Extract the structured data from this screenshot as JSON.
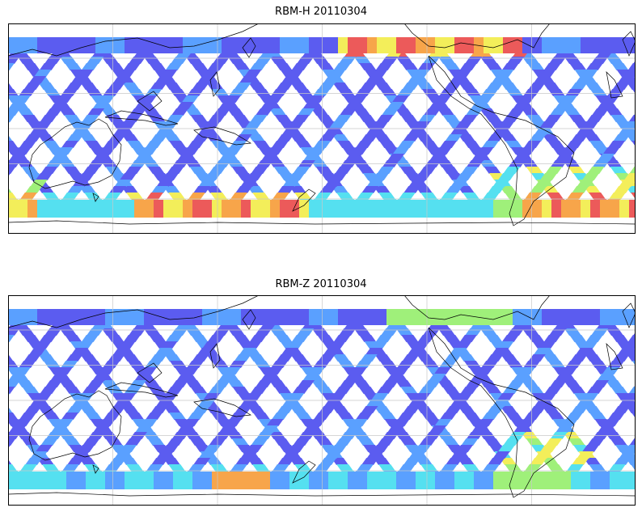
{
  "panels": [
    {
      "title": "RBM-H 20110304",
      "variable": "RBM-H",
      "date": "20110304"
    },
    {
      "title": "RBM-Z 20110304",
      "variable": "RBM-Z",
      "date": "20110304"
    }
  ],
  "colormap": "jet",
  "colors": {
    "track_low": "#5b5cf0",
    "track_mid": "#5aa0ff",
    "track_cyan": "#55e0f0",
    "track_green": "#9ff07a",
    "track_yellow": "#f3ee5a",
    "track_orange": "#f7a54a",
    "track_high": "#ec5a5a",
    "coastline": "#000000",
    "grid": "#c8c8c8",
    "frame": "#000000"
  },
  "map": {
    "projection": "cylindrical",
    "central_longitude": "Pacific",
    "gridlines": true,
    "coastlines": true
  }
}
